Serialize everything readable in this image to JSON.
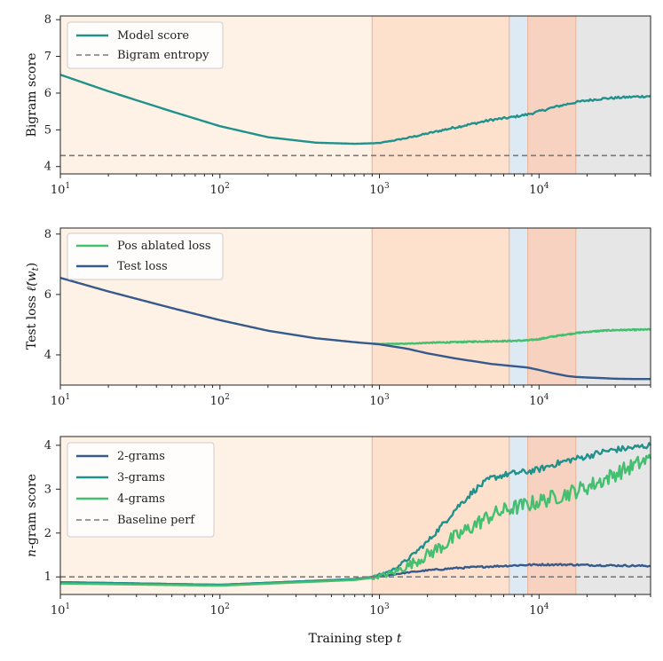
{
  "chart_data": [
    {
      "type": "line",
      "panel": "top",
      "ylabel": "Bigram score",
      "xscale": "log",
      "xlim": [
        10,
        50000
      ],
      "ylim": [
        3.8,
        8.1
      ],
      "yticks": [
        4,
        5,
        6,
        7,
        8
      ],
      "legend_position": "top-left",
      "series": [
        {
          "name": "Model score",
          "color": "#21918c",
          "style": "solid",
          "x": [
            10,
            20,
            50,
            100,
            200,
            400,
            700,
            1000,
            1500,
            2000,
            3000,
            4000,
            5000,
            6500,
            8500,
            10000,
            12000,
            15000,
            17000,
            20000,
            25000,
            30000,
            40000,
            50000
          ],
          "y": [
            6.5,
            6.05,
            5.5,
            5.1,
            4.8,
            4.65,
            4.62,
            4.64,
            4.78,
            4.9,
            5.07,
            5.18,
            5.27,
            5.33,
            5.42,
            5.5,
            5.6,
            5.7,
            5.75,
            5.8,
            5.85,
            5.87,
            5.9,
            5.92
          ],
          "noise": 0.03
        },
        {
          "name": "Bigram entropy",
          "color": "#7a7a7a",
          "style": "dashed",
          "x": [
            10,
            50000
          ],
          "y": [
            4.3,
            4.3
          ]
        }
      ]
    },
    {
      "type": "line",
      "panel": "middle",
      "ylabel": "Test loss",
      "ylabel_math": "ℓ̂(w",
      "ylabel_sub": "t",
      "xscale": "log",
      "xlim": [
        10,
        50000
      ],
      "ylim": [
        3.0,
        8.2
      ],
      "yticks": [
        4,
        6,
        8
      ],
      "legend_position": "top-left",
      "series": [
        {
          "name": "Pos ablated loss",
          "color": "#44bf70",
          "style": "solid",
          "x": [
            900,
            1000,
            1500,
            2000,
            3000,
            4000,
            5000,
            6500,
            8500,
            10000,
            12000,
            15000,
            17000,
            20000,
            25000,
            30000,
            40000,
            50000
          ],
          "y": [
            4.37,
            4.36,
            4.37,
            4.4,
            4.42,
            4.44,
            4.45,
            4.46,
            4.48,
            4.52,
            4.6,
            4.68,
            4.72,
            4.76,
            4.8,
            4.82,
            4.83,
            4.84
          ],
          "noise": 0.02
        },
        {
          "name": "Test loss",
          "color": "#375a8c",
          "style": "solid",
          "x": [
            10,
            20,
            50,
            100,
            200,
            400,
            700,
            1000,
            1500,
            2000,
            3000,
            4000,
            5000,
            6500,
            8500,
            10000,
            12000,
            15000,
            17000,
            20000,
            25000,
            30000,
            40000,
            50000
          ],
          "y": [
            6.55,
            6.1,
            5.55,
            5.15,
            4.8,
            4.55,
            4.42,
            4.35,
            4.2,
            4.05,
            3.88,
            3.78,
            3.7,
            3.64,
            3.58,
            3.5,
            3.4,
            3.3,
            3.27,
            3.25,
            3.23,
            3.21,
            3.2,
            3.2
          ],
          "noise": 0.0
        }
      ]
    },
    {
      "type": "line",
      "panel": "bottom",
      "ylabel": "n-gram score",
      "xlabel": "Training step t",
      "xscale": "log",
      "xlim": [
        10,
        50000
      ],
      "ylim": [
        0.6,
        4.2
      ],
      "yticks": [
        1,
        2,
        3,
        4
      ],
      "xtick_labels": [
        "10¹",
        "10²",
        "10³",
        "10⁴"
      ],
      "legend_position": "top-left",
      "series": [
        {
          "name": "2-grams",
          "color": "#375a8c",
          "style": "solid",
          "x": [
            10,
            100,
            700,
            900,
            1200,
            1500,
            2000,
            3000,
            5000,
            8000,
            10000,
            15000,
            20000,
            30000,
            50000
          ],
          "y": [
            0.88,
            0.82,
            0.95,
            1.0,
            1.05,
            1.1,
            1.15,
            1.2,
            1.24,
            1.27,
            1.28,
            1.28,
            1.27,
            1.26,
            1.25
          ],
          "noise": 0.02
        },
        {
          "name": "3-grams",
          "color": "#21918c",
          "style": "solid",
          "x": [
            10,
            100,
            700,
            900,
            1200,
            1500,
            2000,
            2500,
            3000,
            4000,
            5000,
            6500,
            8500,
            10000,
            12000,
            15000,
            20000,
            25000,
            30000,
            40000,
            50000
          ],
          "y": [
            0.88,
            0.82,
            0.95,
            1.0,
            1.15,
            1.4,
            1.8,
            2.2,
            2.55,
            3.0,
            3.25,
            3.35,
            3.4,
            3.45,
            3.55,
            3.65,
            3.75,
            3.85,
            3.9,
            3.95,
            4.0
          ],
          "noise": 0.07
        },
        {
          "name": "4-grams",
          "color": "#44bf70",
          "style": "solid",
          "x": [
            10,
            100,
            700,
            900,
            1200,
            1500,
            2000,
            3000,
            4000,
            5000,
            6500,
            8500,
            10000,
            12000,
            15000,
            20000,
            25000,
            30000,
            40000,
            50000
          ],
          "y": [
            0.85,
            0.8,
            0.93,
            0.98,
            1.08,
            1.25,
            1.5,
            1.9,
            2.2,
            2.4,
            2.55,
            2.65,
            2.72,
            2.8,
            2.9,
            3.05,
            3.2,
            3.35,
            3.55,
            3.7
          ],
          "noise": 0.18
        },
        {
          "name": "Baseline perf",
          "color": "#7a7a7a",
          "style": "dashed",
          "x": [
            10,
            50000
          ],
          "y": [
            1.0,
            1.0
          ]
        }
      ]
    }
  ],
  "phase_bands": [
    {
      "from": 10,
      "to": 900,
      "color": "#fdf2e5"
    },
    {
      "from": 900,
      "to": 6500,
      "color": "#fde1cc"
    },
    {
      "from": 6500,
      "to": 8500,
      "color": "#dde9f3"
    },
    {
      "from": 8500,
      "to": 17000,
      "color": "#f7d2c0"
    },
    {
      "from": 17000,
      "to": 50000,
      "color": "#e6e6e6"
    }
  ],
  "phase_boundary_color": "#e8b9a0",
  "xticks": [
    10,
    100,
    1000,
    10000
  ],
  "xtick_base": "10",
  "xtick_exponents": [
    "1",
    "2",
    "3",
    "4"
  ],
  "xlabel_prefix": "Training step ",
  "xlabel_var": "t",
  "panel1": {
    "ylabel": "Bigram score",
    "yticks": [
      "4",
      "5",
      "6",
      "7",
      "8"
    ],
    "legend": [
      "Model score",
      "Bigram entropy"
    ]
  },
  "panel2": {
    "ylabel_prefix": "Test loss ",
    "ylabel_math": "ℓ̂(w",
    "ylabel_sub": "t",
    "ylabel_close": ")",
    "yticks": [
      "4",
      "6",
      "8"
    ],
    "legend": [
      "Pos ablated loss",
      "Test loss"
    ]
  },
  "panel3": {
    "ylabel_var": "n",
    "ylabel_rest": "-gram score",
    "yticks": [
      "1",
      "2",
      "3",
      "4"
    ],
    "legend": [
      "2-grams",
      "3-grams",
      "4-grams",
      "Baseline perf"
    ]
  }
}
